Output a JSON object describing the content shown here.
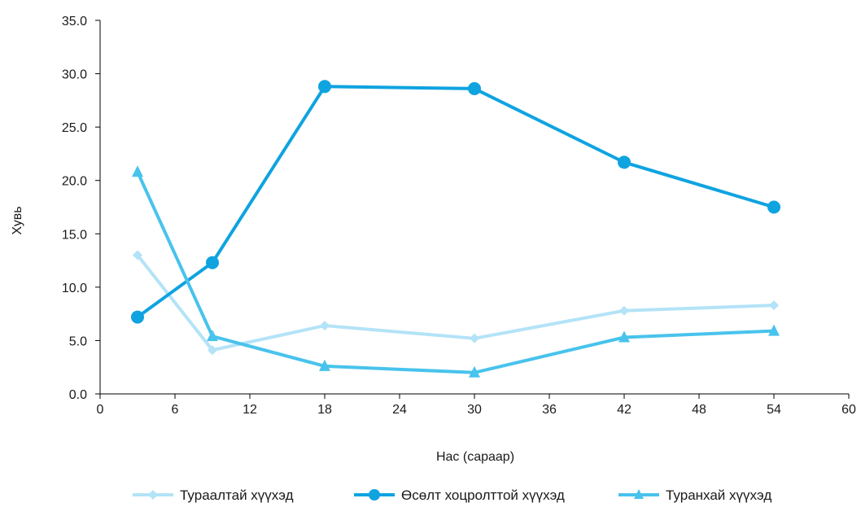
{
  "chart_data": {
    "type": "line",
    "xlabel": "Нас (сараар)",
    "ylabel": "Хувь",
    "xlim": [
      0,
      60
    ],
    "ylim": [
      0,
      35
    ],
    "x_ticks": [
      0,
      6,
      12,
      18,
      24,
      30,
      36,
      42,
      48,
      54,
      60
    ],
    "x_tick_labels": [
      "0",
      "6",
      "12",
      "18",
      "24",
      "30",
      "36",
      "42",
      "48",
      "54",
      "60"
    ],
    "y_ticks": [
      0,
      5,
      10,
      15,
      20,
      25,
      30,
      35
    ],
    "y_tick_labels": [
      "0.0",
      "5.0",
      "10.0",
      "15.0",
      "20.0",
      "25.0",
      "30.0",
      "35.0"
    ],
    "grid": false,
    "legend_position": "bottom",
    "series": [
      {
        "name": "Тураалтай хүүхэд",
        "color": "#b3e3f7",
        "marker": "diamond",
        "x": [
          3,
          9,
          18,
          30,
          42,
          54
        ],
        "values": [
          13.0,
          4.1,
          6.4,
          5.2,
          7.8,
          8.3
        ]
      },
      {
        "name": "Өсөлт хоцролттой хүүхэд",
        "color": "#0fa3e0",
        "marker": "circle",
        "x": [
          3,
          9,
          18,
          30,
          42,
          54
        ],
        "values": [
          7.2,
          12.3,
          28.8,
          28.6,
          21.7,
          17.5
        ]
      },
      {
        "name": "Туранхай хүүхэд",
        "color": "#48c3ec",
        "marker": "triangle",
        "x": [
          3,
          9,
          18,
          30,
          42,
          54
        ],
        "values": [
          20.8,
          5.4,
          2.6,
          2.0,
          5.3,
          5.9
        ]
      }
    ]
  }
}
